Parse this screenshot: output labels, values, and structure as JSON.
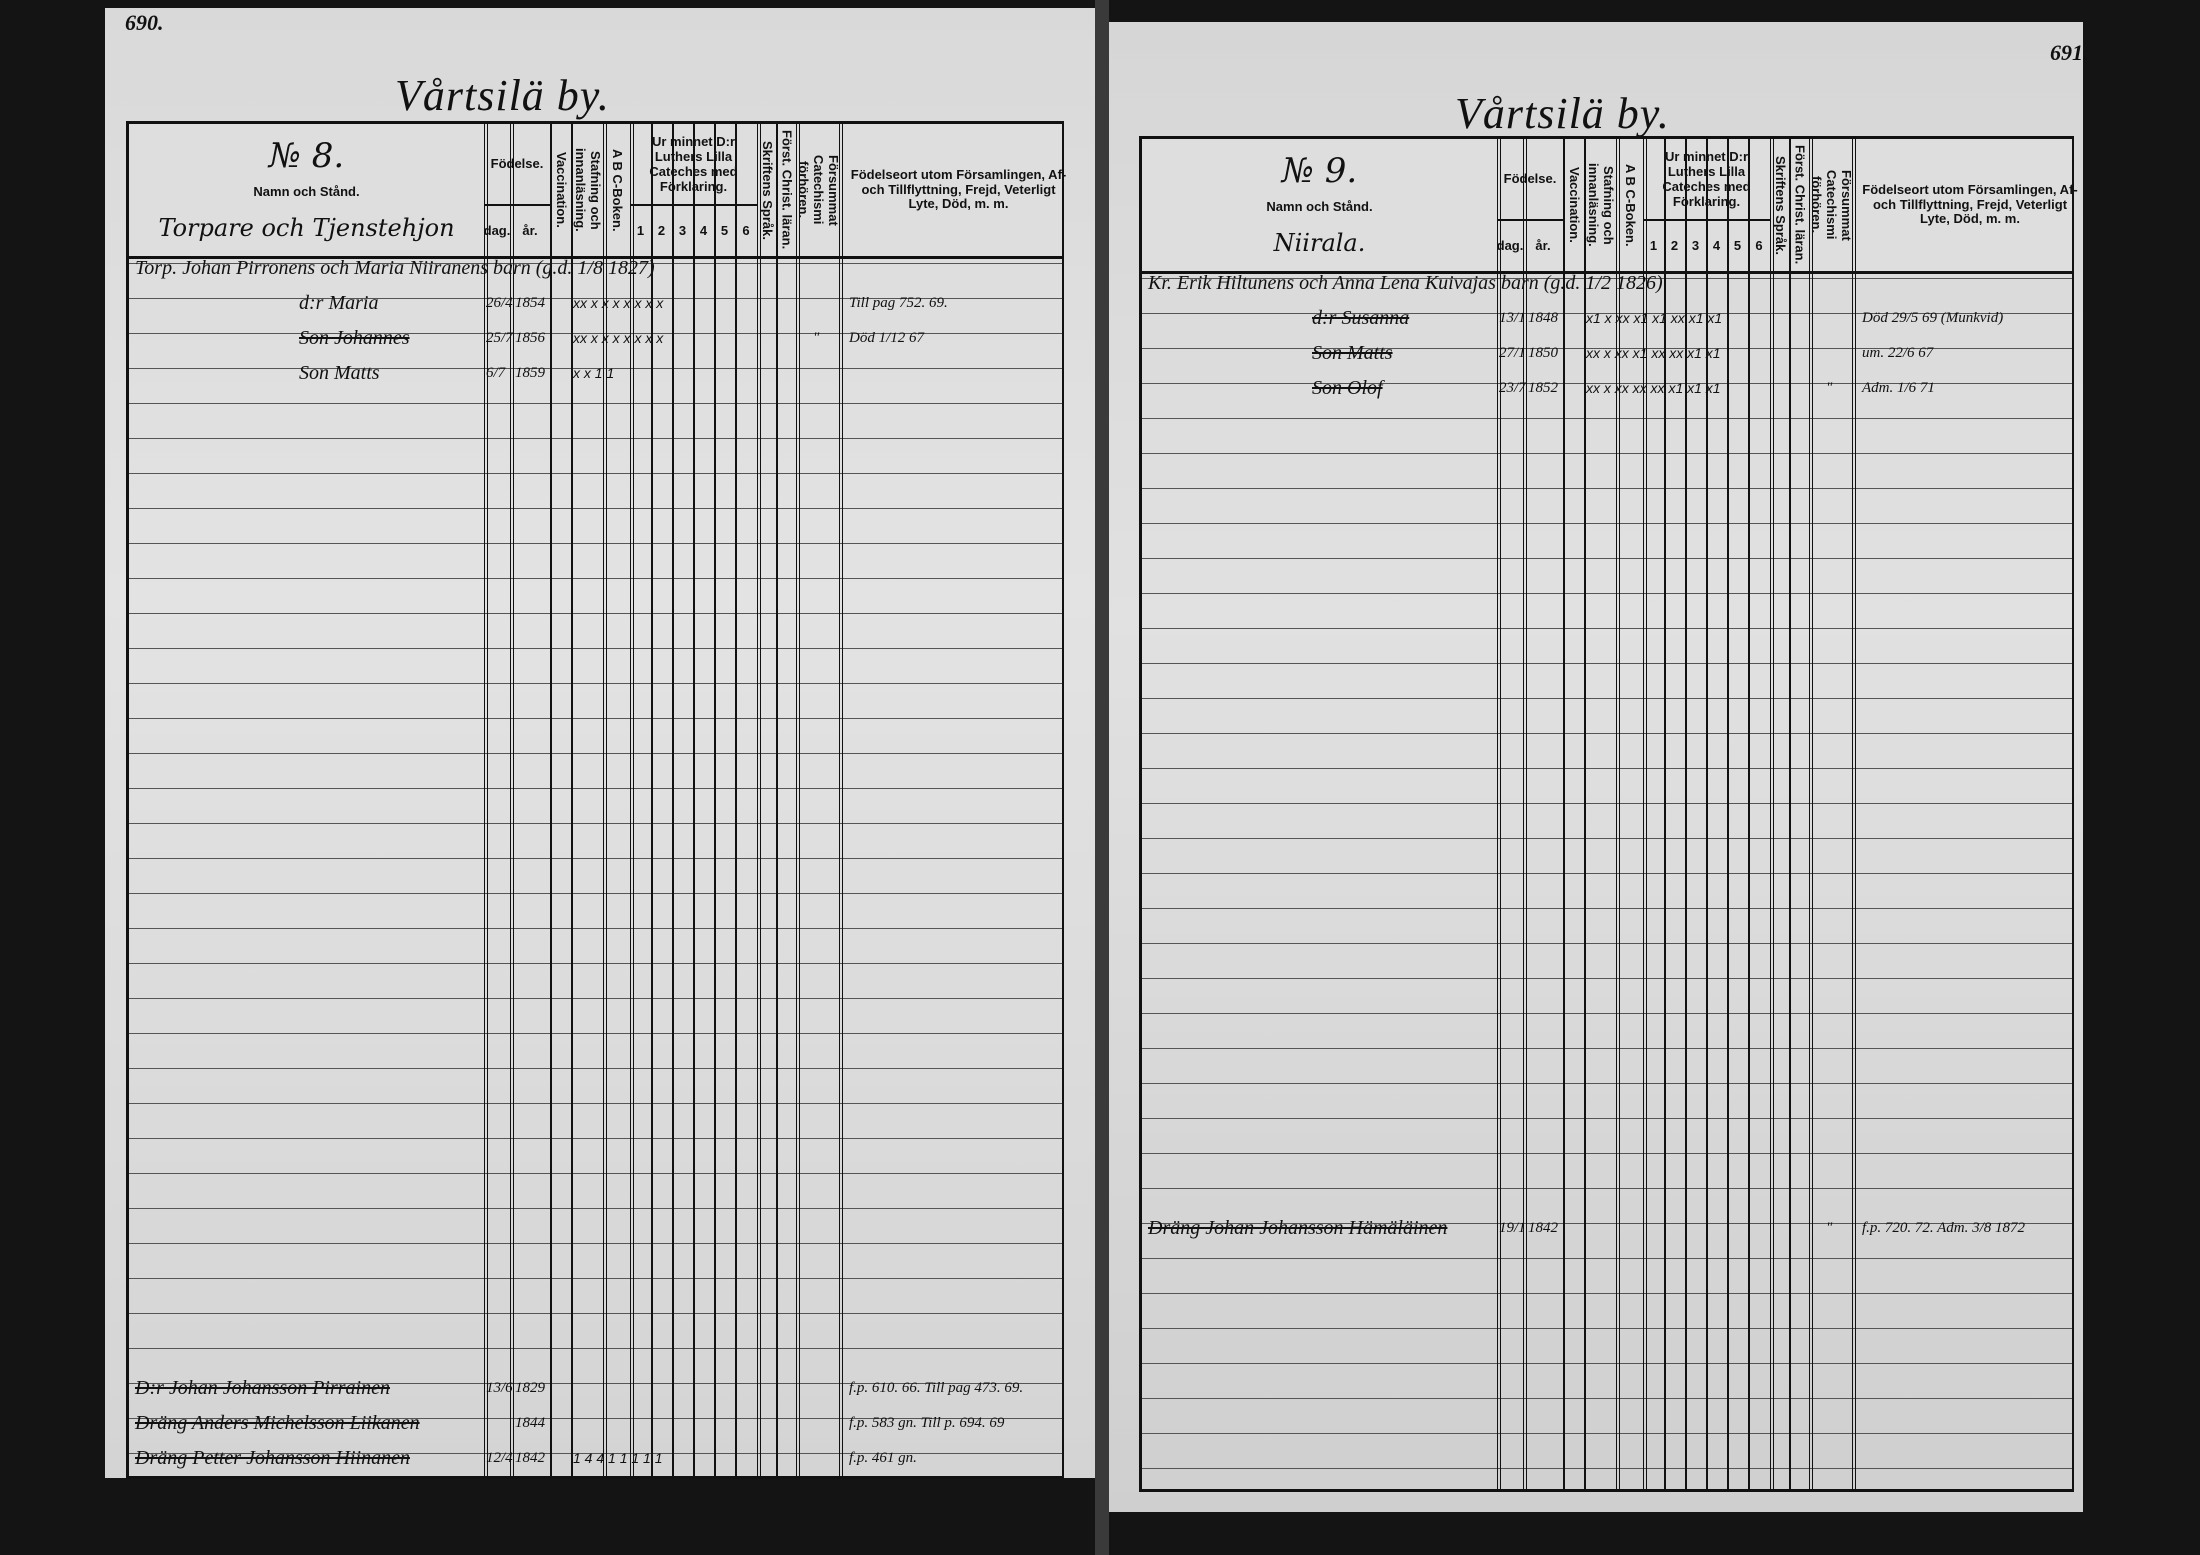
{
  "headers": {
    "name_stand": "Namn och Stånd.",
    "fodelse": "Födelse.",
    "dag": "dag.",
    "ar": "år.",
    "vaccination": "Vaccination.",
    "stafning": "Stafning och innanläsning.",
    "abc": "A B C-Boken.",
    "catechism": "Ur minnet D:r Luthers Lilla Cateches med Förklaring.",
    "nums": [
      "1",
      "2",
      "3",
      "4",
      "5",
      "6"
    ],
    "skriftens": "Skriftens Språk.",
    "forst": "Först. Christ. läran.",
    "forsummat": "Försummat Catechismi förhören.",
    "fodelseort": "Födelseort utom Församlingen, Af- och Tillflyttning, Frejd, Veterligt Lyte, Död, m. m."
  },
  "pages": [
    {
      "page_number": "690.",
      "village": "Vårtsilä by.",
      "household_number": "№ 8.",
      "category": "Torpare och Tjenstehjon",
      "entries": [
        {
          "row": 0,
          "name": "Torp. Johan Pirronens och Maria Niiranens barn (g.d. 1/8 1827)",
          "full": true
        },
        {
          "row": 1,
          "name": "d:r Maria",
          "dag": "26/4",
          "ar": "1854",
          "marks": "xx x x x x x x x",
          "notes": "Till pag 752. 69."
        },
        {
          "row": 2,
          "name": "Son Johannes",
          "dag": "25/7",
          "ar": "1856",
          "marks": "xx x x x x x x x",
          "forsummat": "\"",
          "notes": "Död 1/12 67",
          "struck": true
        },
        {
          "row": 3,
          "name": "Son Matts",
          "dag": "6/7",
          "ar": "1859",
          "marks": "x x   1 1"
        },
        {
          "row": 32,
          "name": "D:r Johan Johansson Pirrainen",
          "dag": "13/6",
          "ar": "1829",
          "notes": "f.p. 610. 66. Till pag 473. 69.",
          "struck": true
        },
        {
          "row": 33,
          "name": "Dräng Anders Michelsson Liikanen",
          "ar": "1844",
          "notes": "f.p. 583 gn. Till p. 694. 69",
          "struck": true
        },
        {
          "row": 34,
          "name": "Dräng Petter Johansson Hiinanen",
          "dag": "12/4",
          "ar": "1842",
          "marks": "1 4 4 1 1 1 1 1",
          "notes": "f.p. 461 gn.",
          "struck": true
        }
      ]
    },
    {
      "page_number": "691.",
      "village": "Vårtsilä by.",
      "household_number": "№ 9.",
      "category": "Niirala.",
      "entries": [
        {
          "row": 0,
          "name": "Kr. Erik Hiltunens och Anna Lena Kuivajas barn (g.d. 1/2 1826)",
          "full": true
        },
        {
          "row": 1,
          "name": "d:r Susanna",
          "dag": "13/1",
          "ar": "1848",
          "marks": "x1 x xx x1 x1 xx x1 x1",
          "notes": "Död 29/5 69 (Munkvid)",
          "struck": true
        },
        {
          "row": 2,
          "name": "Son Matts",
          "dag": "27/1",
          "ar": "1850",
          "marks": "xx x xx x1 xx xx x1 x1",
          "notes": "um. 22/6 67",
          "struck": true
        },
        {
          "row": 3,
          "name": "Son Olof",
          "dag": "23/7",
          "ar": "1852",
          "marks": "xx x xx xx xx x1 x1 x1",
          "forsummat": "\"",
          "notes": "Adm. 1/6 71",
          "struck": true
        },
        {
          "row": 27,
          "name": "Dräng Johan Johansson Hämäläinen",
          "dag": "19/1",
          "ar": "1842",
          "forsummat": "\"",
          "notes": "f.p. 720. 72. Adm. 3/8 1872",
          "struck": true
        }
      ]
    }
  ]
}
